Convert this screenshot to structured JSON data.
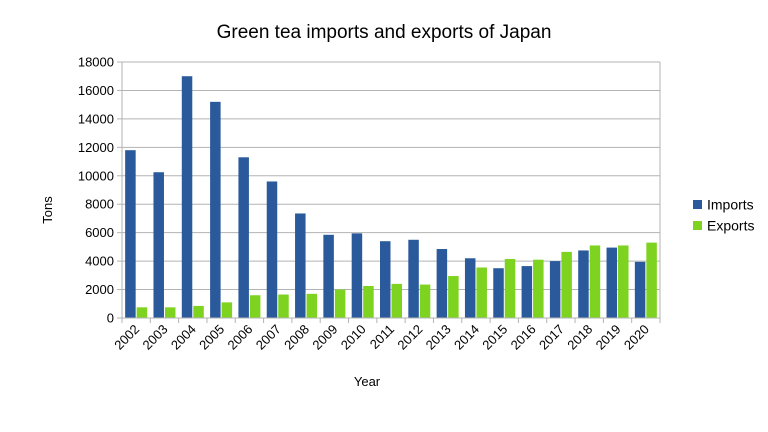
{
  "chart_data": {
    "type": "bar",
    "title": "Green tea imports and exports of Japan",
    "xlabel": "Year",
    "ylabel": "Tons",
    "ylim": [
      0,
      18000
    ],
    "y_ticks": [
      0,
      2000,
      4000,
      6000,
      8000,
      10000,
      12000,
      14000,
      16000,
      18000
    ],
    "grid": true,
    "legend_position": "right",
    "categories": [
      "2002",
      "2003",
      "2004",
      "2005",
      "2006",
      "2007",
      "2008",
      "2009",
      "2010",
      "2011",
      "2012",
      "2013",
      "2014",
      "2015",
      "2016",
      "2017",
      "2018",
      "2019",
      "2020"
    ],
    "series": [
      {
        "name": "Imports",
        "color": "#2a5a9c",
        "values": [
          11800,
          10250,
          17000,
          15200,
          11300,
          9600,
          7350,
          5850,
          5950,
          5400,
          5500,
          4850,
          4200,
          3500,
          3650,
          4000,
          4750,
          4950,
          3950
        ]
      },
      {
        "name": "Exports",
        "color": "#7ed321",
        "values": [
          750,
          750,
          850,
          1100,
          1600,
          1650,
          1700,
          2000,
          2250,
          2400,
          2350,
          2950,
          3550,
          4150,
          4100,
          4650,
          5100,
          5100,
          5300
        ]
      }
    ]
  }
}
